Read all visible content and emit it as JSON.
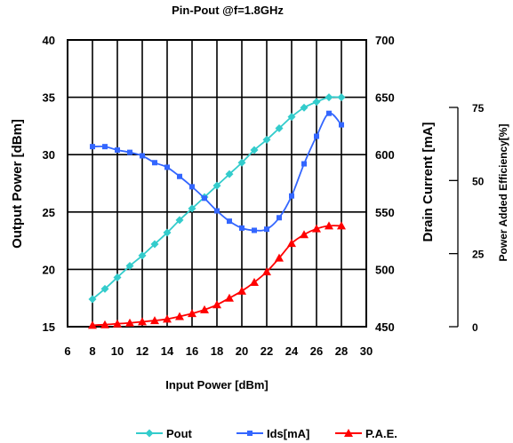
{
  "chart_data": {
    "type": "line",
    "title": "Pin-Pout @f=1.8GHz",
    "xlabel": "Input Power [dBm]",
    "x_ticks": [
      6,
      8,
      10,
      12,
      14,
      16,
      18,
      20,
      22,
      24,
      26,
      28,
      30
    ],
    "xlim": [
      6,
      30
    ],
    "y_left": {
      "label": "Output Power [dBm]",
      "range": [
        15,
        40
      ],
      "ticks": [
        15,
        20,
        25,
        30,
        35,
        40
      ]
    },
    "y_right1": {
      "label": "Drain Current [mA]",
      "range": [
        450,
        700
      ],
      "ticks": [
        450,
        500,
        550,
        600,
        650,
        700
      ]
    },
    "y_right2": {
      "label": "Power Added Efficiency[%]",
      "range": [
        0,
        75
      ],
      "ticks": [
        0,
        25,
        50,
        75
      ]
    },
    "grid": true,
    "legend_position": "bottom",
    "series": [
      {
        "name": "Pout",
        "axis": "left",
        "color": "#33cccc",
        "marker": "diamond",
        "x": [
          8,
          9,
          10,
          11,
          12,
          13,
          14,
          15,
          16,
          17,
          18,
          19,
          20,
          21,
          22,
          23,
          24,
          25,
          26,
          27,
          28
        ],
        "y": [
          17.4,
          18.3,
          19.3,
          20.3,
          21.2,
          22.2,
          23.2,
          24.3,
          25.3,
          26.3,
          27.3,
          28.3,
          29.3,
          30.4,
          31.3,
          32.3,
          33.3,
          34.1,
          34.6,
          35.0,
          35.0
        ]
      },
      {
        "name": "Ids[mA]",
        "axis": "right1",
        "color": "#3366ff",
        "marker": "square",
        "x": [
          8,
          9,
          10,
          11,
          12,
          13,
          14,
          15,
          16,
          17,
          18,
          19,
          20,
          21,
          22,
          23,
          24,
          25,
          26,
          27,
          28
        ],
        "y": [
          607,
          607,
          604,
          602,
          599,
          593,
          589,
          581,
          572,
          562,
          551,
          542,
          536,
          534,
          535,
          545,
          564,
          592,
          616,
          636,
          626
        ]
      },
      {
        "name": "P.A.E.",
        "axis": "right2",
        "color": "#ff0000",
        "marker": "triangle",
        "x": [
          8,
          9,
          10,
          11,
          12,
          13,
          14,
          15,
          16,
          17,
          18,
          19,
          20,
          21,
          22,
          23,
          24,
          25,
          26,
          27,
          28
        ],
        "y": [
          0.5,
          0.7,
          1.0,
          1.3,
          1.7,
          2.1,
          2.6,
          3.5,
          4.5,
          5.8,
          7.5,
          9.8,
          12.2,
          15.2,
          18.8,
          23.5,
          28.5,
          31.5,
          33.5,
          34.5,
          34.5
        ]
      }
    ]
  }
}
